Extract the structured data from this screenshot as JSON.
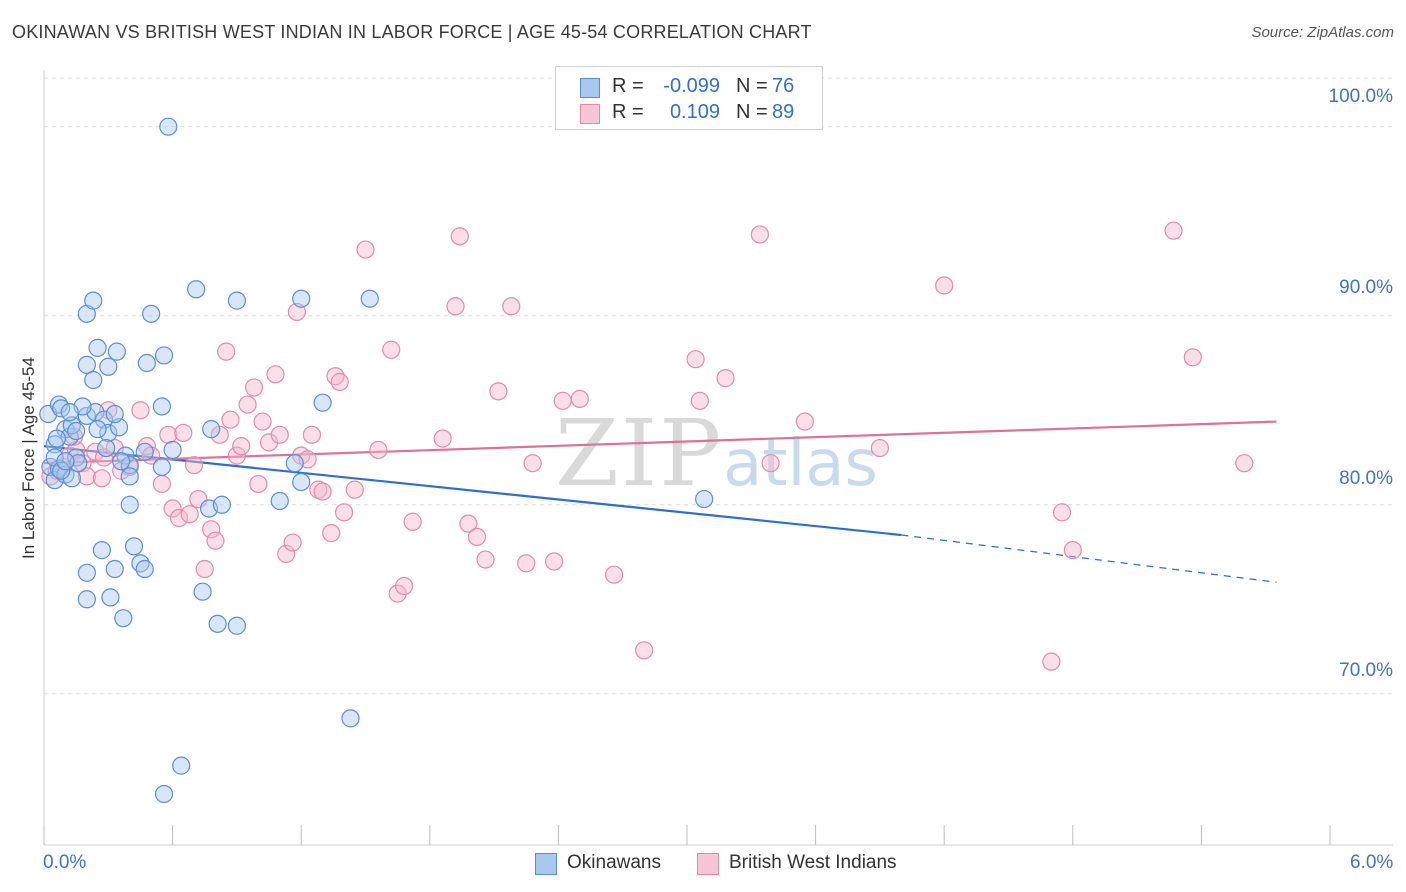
{
  "header": {
    "title": "OKINAWAN VS BRITISH WEST INDIAN IN LABOR FORCE | AGE 45-54 CORRELATION CHART",
    "source": "Source: ZipAtlas.com"
  },
  "legend": {
    "rows": [
      {
        "r_label": "R =",
        "r_value": "-0.099",
        "n_label": "N =",
        "n_value": "76"
      },
      {
        "r_label": "R =",
        "r_value": "0.109",
        "n_label": "N =",
        "n_value": "89"
      }
    ]
  },
  "watermark": {
    "zip": "ZIP",
    "atlas": "atlas"
  },
  "colors": {
    "blue_fill": "#a9c8ef",
    "blue_stroke": "#5a8fd6",
    "blue_line": "#2c6fcc",
    "pink_fill": "#f5b8cb",
    "pink_stroke": "#e58aa8",
    "pink_line": "#e0709a",
    "tick_text": "#3e73c6",
    "grid": "#dcdcdc"
  },
  "chart_data": {
    "type": "scatter",
    "title": "OKINAWAN VS BRITISH WEST INDIAN IN LABOR FORCE | AGE 45-54 CORRELATION CHART",
    "xlabel": "",
    "ylabel": "In Labor Force | Age 45-54",
    "xlim": [
      0,
      6
    ],
    "ylim": [
      62,
      103
    ],
    "x_tick_labels": [
      "0.0%",
      "6.0%"
    ],
    "y_ticks": [
      70,
      80,
      90,
      100
    ],
    "y_tick_labels": [
      "70.0%",
      "80.0%",
      "90.0%",
      "100.0%"
    ],
    "grid": true,
    "legend_position": "top-center",
    "series": [
      {
        "name": "Okinawans",
        "color": "#a9c8ef",
        "r": -0.099,
        "n": 76,
        "trend": {
          "x0": 0.0,
          "y0": 83.1,
          "x1": 4.0,
          "y1": 78.4,
          "dash_to_x": 5.75,
          "dash_to_y": 75.9
        },
        "points": [
          [
            0.02,
            84.8
          ],
          [
            0.05,
            83.2
          ],
          [
            0.07,
            85.3
          ],
          [
            0.08,
            85.1
          ],
          [
            0.1,
            84.0
          ],
          [
            0.12,
            83.6
          ],
          [
            0.13,
            84.2
          ],
          [
            0.15,
            82.5
          ],
          [
            0.03,
            82.0
          ],
          [
            0.05,
            81.3
          ],
          [
            0.07,
            81.9
          ],
          [
            0.1,
            81.6
          ],
          [
            0.13,
            81.4
          ],
          [
            0.15,
            83.9
          ],
          [
            0.2,
            84.7
          ],
          [
            0.24,
            84.9
          ],
          [
            0.28,
            84.5
          ],
          [
            0.3,
            83.8
          ],
          [
            0.35,
            84.1
          ],
          [
            0.38,
            82.6
          ],
          [
            0.2,
            87.4
          ],
          [
            0.23,
            86.6
          ],
          [
            0.25,
            88.3
          ],
          [
            0.3,
            87.3
          ],
          [
            0.34,
            88.1
          ],
          [
            0.48,
            87.5
          ],
          [
            0.56,
            87.9
          ],
          [
            0.2,
            90.1
          ],
          [
            0.23,
            90.8
          ],
          [
            0.5,
            90.1
          ],
          [
            0.71,
            91.4
          ],
          [
            0.9,
            90.8
          ],
          [
            1.2,
            90.9
          ],
          [
            1.52,
            90.9
          ],
          [
            0.55,
            85.2
          ],
          [
            1.3,
            85.4
          ],
          [
            0.78,
            84.0
          ],
          [
            0.4,
            82.1
          ],
          [
            0.47,
            82.8
          ],
          [
            0.6,
            82.9
          ],
          [
            0.55,
            82.0
          ],
          [
            0.4,
            80.0
          ],
          [
            0.77,
            79.8
          ],
          [
            0.83,
            80.0
          ],
          [
            1.1,
            80.2
          ],
          [
            1.17,
            82.2
          ],
          [
            1.2,
            81.2
          ],
          [
            0.27,
            77.6
          ],
          [
            0.42,
            77.8
          ],
          [
            0.45,
            76.9
          ],
          [
            0.47,
            76.6
          ],
          [
            0.33,
            76.6
          ],
          [
            0.2,
            76.4
          ],
          [
            0.2,
            75.0
          ],
          [
            0.31,
            75.1
          ],
          [
            0.74,
            75.4
          ],
          [
            0.37,
            74.0
          ],
          [
            0.81,
            73.7
          ],
          [
            0.9,
            73.6
          ],
          [
            1.43,
            68.7
          ],
          [
            0.64,
            66.2
          ],
          [
            0.56,
            64.7
          ],
          [
            0.58,
            100.0
          ],
          [
            3.08,
            80.3
          ],
          [
            0.05,
            82.5
          ],
          [
            0.08,
            81.8
          ],
          [
            0.25,
            84.0
          ],
          [
            0.33,
            84.8
          ],
          [
            0.18,
            85.2
          ],
          [
            0.12,
            84.9
          ],
          [
            0.4,
            81.5
          ],
          [
            0.36,
            82.3
          ],
          [
            0.16,
            82.2
          ],
          [
            0.29,
            83.0
          ],
          [
            0.06,
            83.5
          ],
          [
            0.1,
            82.3
          ]
        ]
      },
      {
        "name": "British West Indians",
        "color": "#f5b8cb",
        "r": 0.109,
        "n": 89,
        "trend": {
          "x0": 0.0,
          "y0": 82.2,
          "x1": 5.75,
          "y1": 84.4
        },
        "points": [
          [
            0.03,
            81.5
          ],
          [
            0.06,
            81.8
          ],
          [
            0.09,
            82.0
          ],
          [
            0.12,
            82.6
          ],
          [
            0.15,
            82.9
          ],
          [
            0.18,
            82.2
          ],
          [
            0.2,
            81.5
          ],
          [
            0.24,
            82.8
          ],
          [
            0.28,
            82.5
          ],
          [
            0.3,
            85.0
          ],
          [
            0.33,
            83.0
          ],
          [
            0.36,
            81.8
          ],
          [
            0.4,
            82.0
          ],
          [
            0.45,
            85.0
          ],
          [
            0.48,
            83.1
          ],
          [
            0.5,
            82.6
          ],
          [
            0.55,
            81.1
          ],
          [
            0.58,
            83.7
          ],
          [
            0.6,
            79.8
          ],
          [
            0.63,
            79.3
          ],
          [
            0.65,
            83.8
          ],
          [
            0.68,
            79.5
          ],
          [
            0.7,
            82.1
          ],
          [
            0.72,
            80.3
          ],
          [
            0.75,
            76.6
          ],
          [
            0.78,
            78.7
          ],
          [
            0.8,
            78.1
          ],
          [
            0.82,
            83.7
          ],
          [
            0.85,
            88.1
          ],
          [
            0.87,
            84.5
          ],
          [
            0.9,
            82.6
          ],
          [
            0.92,
            83.1
          ],
          [
            0.95,
            85.3
          ],
          [
            0.98,
            86.2
          ],
          [
            1.0,
            81.1
          ],
          [
            1.02,
            84.4
          ],
          [
            1.05,
            83.3
          ],
          [
            1.08,
            86.9
          ],
          [
            1.1,
            83.7
          ],
          [
            1.13,
            77.4
          ],
          [
            1.16,
            78.0
          ],
          [
            1.18,
            90.2
          ],
          [
            1.2,
            82.6
          ],
          [
            1.23,
            82.4
          ],
          [
            1.25,
            83.7
          ],
          [
            1.28,
            80.8
          ],
          [
            1.3,
            80.7
          ],
          [
            1.34,
            78.5
          ],
          [
            1.36,
            86.8
          ],
          [
            1.38,
            86.5
          ],
          [
            1.4,
            79.6
          ],
          [
            1.45,
            80.8
          ],
          [
            1.5,
            93.5
          ],
          [
            1.56,
            82.9
          ],
          [
            1.62,
            88.2
          ],
          [
            1.65,
            75.3
          ],
          [
            1.68,
            75.7
          ],
          [
            1.72,
            79.1
          ],
          [
            1.86,
            83.5
          ],
          [
            1.92,
            90.5
          ],
          [
            1.94,
            94.2
          ],
          [
            1.98,
            79.0
          ],
          [
            2.02,
            78.3
          ],
          [
            2.06,
            77.1
          ],
          [
            2.12,
            86.0
          ],
          [
            2.18,
            90.5
          ],
          [
            2.25,
            76.9
          ],
          [
            2.28,
            82.2
          ],
          [
            2.38,
            77.0
          ],
          [
            2.42,
            85.5
          ],
          [
            2.5,
            85.6
          ],
          [
            2.66,
            76.3
          ],
          [
            2.8,
            72.3
          ],
          [
            3.04,
            87.7
          ],
          [
            3.06,
            85.5
          ],
          [
            3.18,
            86.7
          ],
          [
            3.34,
            94.3
          ],
          [
            3.39,
            82.2
          ],
          [
            3.55,
            84.4
          ],
          [
            3.9,
            83.0
          ],
          [
            4.2,
            91.6
          ],
          [
            4.7,
            71.7
          ],
          [
            4.75,
            79.6
          ],
          [
            4.8,
            77.6
          ],
          [
            5.27,
            94.5
          ],
          [
            5.36,
            87.8
          ],
          [
            5.6,
            82.2
          ],
          [
            0.27,
            81.4
          ],
          [
            0.14,
            83.6
          ]
        ]
      }
    ]
  }
}
